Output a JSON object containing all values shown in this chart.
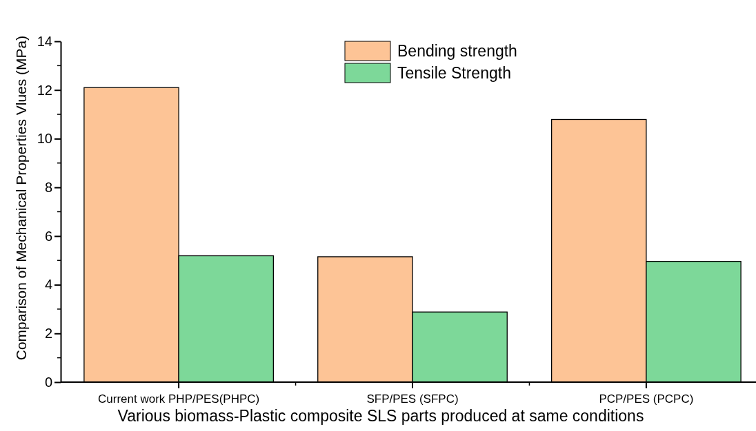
{
  "chart_data": {
    "type": "bar",
    "xlabel": "Various biomass-Plastic composite SLS parts produced at same conditions",
    "ylabel": "Comparison of Mechanical Properties Vlues (MPa)",
    "categories": [
      "Current work PHP/PES(PHPC)",
      "SFP/PES (SFPC)",
      "PCP/PES (PCPC)"
    ],
    "series": [
      {
        "name": "Bending strength",
        "color": "#fdc496",
        "values": [
          12.1,
          5.15,
          10.79
        ]
      },
      {
        "name": "Tensile Strength",
        "color": "#7dd899",
        "values": [
          5.19,
          2.88,
          4.96
        ]
      }
    ],
    "ylim": [
      0,
      14
    ],
    "yticks": [
      0,
      2,
      4,
      6,
      8,
      10,
      12,
      14
    ],
    "grid": false,
    "legend": "top"
  }
}
